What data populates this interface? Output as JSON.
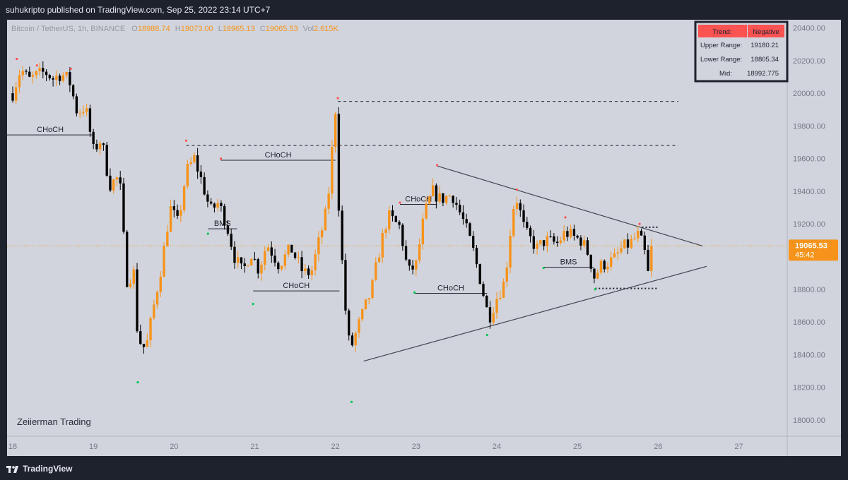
{
  "publisher_line": "suhukripto published on TradingView.com, Sep 25, 2022 23:14 UTC+7",
  "footer_brand": "TradingView",
  "watermark": "Zeiierman Trading",
  "legend": {
    "symbol": "Bitcoin / TetherUS, 1h, BINANCE",
    "o_label": "O",
    "o_value": "18988.74",
    "h_label": "H",
    "h_value": "19073.00",
    "l_label": "L",
    "l_value": "18965.13",
    "c_label": "C",
    "c_value": "19065.53",
    "vol_label": "Vol",
    "vol_value": "2.615K"
  },
  "info_table": {
    "rows": [
      {
        "label": "Trend:",
        "value": "Negative"
      },
      {
        "label": "Upper Range:",
        "value": "19180.21"
      },
      {
        "label": "Lower Range:",
        "value": "18805.34"
      },
      {
        "label": "Mid:",
        "value": "18992.775"
      }
    ]
  },
  "price_tag": {
    "price": "19065.53",
    "countdown": "45:42"
  },
  "colors": {
    "background": "#d1d4dc",
    "frame": "#1e222d",
    "up_candle": "#f7931a",
    "down_candle": "#000000",
    "pivot_high": "#ff5252",
    "pivot_low": "#00c853",
    "trend_header": "#ff5252",
    "price_line": "#f7931a"
  },
  "chart_data": {
    "type": "candlestick",
    "title": "Bitcoin / TetherUS, 1h, BINANCE",
    "x_tick_labels": [
      "18",
      "19",
      "20",
      "21",
      "22",
      "23",
      "24",
      "25",
      "26",
      "27"
    ],
    "y_tick_labels": [
      "18000.00",
      "18200.00",
      "18400.00",
      "18600.00",
      "18800.00",
      "19000.00",
      "19200.00",
      "19400.00",
      "19600.00",
      "19800.00",
      "20000.00",
      "20200.00",
      "20400.00"
    ],
    "ylim": [
      17900,
      20450
    ],
    "xlim": [
      17.93,
      27.6
    ],
    "grid": false,
    "last_price": 19065.53,
    "price_path": [
      {
        "t": 18.0,
        "p": 20000
      },
      {
        "t": 18.1,
        "p": 20150
      },
      {
        "t": 18.2,
        "p": 20080
      },
      {
        "t": 18.3,
        "p": 20110
      },
      {
        "t": 18.4,
        "p": 20130
      },
      {
        "t": 18.5,
        "p": 20090
      },
      {
        "t": 18.6,
        "p": 20120
      },
      {
        "t": 18.7,
        "p": 20080
      },
      {
        "t": 18.8,
        "p": 19880
      },
      {
        "t": 18.9,
        "p": 19920
      },
      {
        "t": 19.0,
        "p": 19650
      },
      {
        "t": 19.1,
        "p": 19720
      },
      {
        "t": 19.2,
        "p": 19440
      },
      {
        "t": 19.3,
        "p": 19480
      },
      {
        "t": 19.35,
        "p": 19380
      },
      {
        "t": 19.4,
        "p": 18850
      },
      {
        "t": 19.5,
        "p": 18900
      },
      {
        "t": 19.55,
        "p": 18500
      },
      {
        "t": 19.65,
        "p": 18430
      },
      {
        "t": 19.75,
        "p": 18700
      },
      {
        "t": 19.85,
        "p": 18960
      },
      {
        "t": 19.95,
        "p": 19300
      },
      {
        "t": 20.05,
        "p": 19200
      },
      {
        "t": 20.15,
        "p": 19520
      },
      {
        "t": 20.25,
        "p": 19600
      },
      {
        "t": 20.35,
        "p": 19450
      },
      {
        "t": 20.45,
        "p": 19280
      },
      {
        "t": 20.55,
        "p": 19330
      },
      {
        "t": 20.65,
        "p": 19200
      },
      {
        "t": 20.75,
        "p": 19000
      },
      {
        "t": 20.85,
        "p": 18900
      },
      {
        "t": 20.95,
        "p": 19030
      },
      {
        "t": 21.05,
        "p": 18920
      },
      {
        "t": 21.15,
        "p": 19080
      },
      {
        "t": 21.3,
        "p": 18950
      },
      {
        "t": 21.45,
        "p": 19050
      },
      {
        "t": 21.6,
        "p": 18900
      },
      {
        "t": 21.7,
        "p": 18900
      },
      {
        "t": 21.8,
        "p": 19100
      },
      {
        "t": 21.9,
        "p": 19300
      },
      {
        "t": 22.0,
        "p": 19900
      },
      {
        "t": 22.05,
        "p": 19200
      },
      {
        "t": 22.15,
        "p": 18500
      },
      {
        "t": 22.2,
        "p": 18450
      },
      {
        "t": 22.3,
        "p": 18600
      },
      {
        "t": 22.45,
        "p": 18800
      },
      {
        "t": 22.55,
        "p": 19050
      },
      {
        "t": 22.65,
        "p": 19250
      },
      {
        "t": 22.8,
        "p": 19180
      },
      {
        "t": 22.9,
        "p": 18900
      },
      {
        "t": 23.0,
        "p": 18950
      },
      {
        "t": 23.1,
        "p": 19250
      },
      {
        "t": 23.2,
        "p": 19400
      },
      {
        "t": 23.3,
        "p": 19350
      },
      {
        "t": 23.45,
        "p": 19380
      },
      {
        "t": 23.6,
        "p": 19200
      },
      {
        "t": 23.7,
        "p": 19050
      },
      {
        "t": 23.8,
        "p": 18850
      },
      {
        "t": 23.9,
        "p": 18620
      },
      {
        "t": 24.0,
        "p": 18750
      },
      {
        "t": 24.1,
        "p": 18850
      },
      {
        "t": 24.2,
        "p": 19300
      },
      {
        "t": 24.25,
        "p": 19350
      },
      {
        "t": 24.35,
        "p": 19150
      },
      {
        "t": 24.5,
        "p": 19050
      },
      {
        "t": 24.6,
        "p": 19100
      },
      {
        "t": 24.75,
        "p": 19080
      },
      {
        "t": 24.85,
        "p": 19150
      },
      {
        "t": 24.95,
        "p": 19120
      },
      {
        "t": 25.05,
        "p": 19100
      },
      {
        "t": 25.15,
        "p": 19000
      },
      {
        "t": 25.2,
        "p": 18870
      },
      {
        "t": 25.3,
        "p": 18950
      },
      {
        "t": 25.45,
        "p": 18980
      },
      {
        "t": 25.55,
        "p": 19050
      },
      {
        "t": 25.65,
        "p": 19080
      },
      {
        "t": 25.75,
        "p": 19130
      },
      {
        "t": 25.82,
        "p": 19060
      },
      {
        "t": 25.88,
        "p": 18880
      },
      {
        "t": 25.95,
        "p": 19065
      }
    ],
    "pivot_highs": [
      {
        "t": 18.05,
        "p": 20210
      },
      {
        "t": 18.3,
        "p": 20170
      },
      {
        "t": 18.72,
        "p": 20150
      },
      {
        "t": 20.15,
        "p": 19710
      },
      {
        "t": 20.58,
        "p": 19600
      },
      {
        "t": 22.03,
        "p": 19970
      },
      {
        "t": 22.8,
        "p": 19330
      },
      {
        "t": 23.26,
        "p": 19560
      },
      {
        "t": 24.25,
        "p": 19410
      },
      {
        "t": 24.85,
        "p": 19240
      },
      {
        "t": 25.77,
        "p": 19200
      }
    ],
    "pivot_lows": [
      {
        "t": 19.55,
        "p": 18230
      },
      {
        "t": 20.42,
        "p": 19140
      },
      {
        "t": 20.98,
        "p": 18710
      },
      {
        "t": 22.2,
        "p": 18110
      },
      {
        "t": 22.98,
        "p": 18780
      },
      {
        "t": 23.88,
        "p": 18520
      },
      {
        "t": 24.58,
        "p": 18930
      },
      {
        "t": 25.22,
        "p": 18800
      }
    ],
    "lines": [
      {
        "kind": "solid",
        "label": "CHoCH",
        "t1": 17.93,
        "t2": 19.0,
        "p": 19745
      },
      {
        "kind": "solid",
        "label": "CHoCH",
        "t1": 20.58,
        "t2": 22.0,
        "p": 19590
      },
      {
        "kind": "solid",
        "label": "BMS",
        "t1": 20.42,
        "t2": 20.78,
        "p": 19170
      },
      {
        "kind": "solid",
        "label": "CHoCH",
        "t1": 20.98,
        "t2": 22.05,
        "p": 18790
      },
      {
        "kind": "solid",
        "label": "CHoCH",
        "t1": 22.8,
        "t2": 23.26,
        "p": 19320
      },
      {
        "kind": "solid",
        "label": "CHoCH",
        "t1": 22.98,
        "t2": 23.88,
        "p": 18775
      },
      {
        "kind": "solid",
        "label": "BMS",
        "t1": 24.58,
        "t2": 25.2,
        "p": 18935
      },
      {
        "kind": "dashed",
        "label": "",
        "t1": 22.03,
        "t2": 26.25,
        "p": 19950
      },
      {
        "kind": "dashed",
        "label": "",
        "t1": 20.15,
        "t2": 26.25,
        "p": 19680
      },
      {
        "kind": "dotted",
        "label": "",
        "t1": 25.8,
        "t2": 26.0,
        "p": 19180
      },
      {
        "kind": "dotted",
        "label": "",
        "t1": 25.22,
        "t2": 26.0,
        "p": 18805
      },
      {
        "kind": "trend",
        "label": "",
        "t1": 23.26,
        "p1": 19555,
        "t2": 26.55,
        "p2": 19065
      },
      {
        "kind": "trend",
        "label": "",
        "t1": 22.35,
        "p1": 18360,
        "t2": 26.6,
        "p2": 18940
      }
    ]
  }
}
